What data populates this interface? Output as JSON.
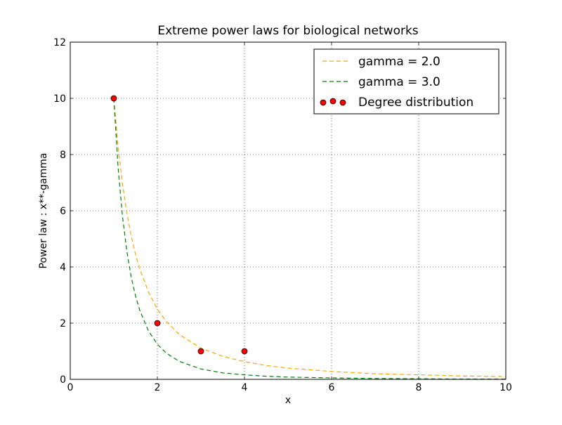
{
  "chart_data": {
    "type": "line",
    "title": "Extreme power laws for biological networks",
    "xlabel": "x",
    "ylabel": "Power law : x**-gamma",
    "xlim": [
      0,
      10
    ],
    "ylim": [
      0,
      12
    ],
    "xticks": [
      "0",
      "2",
      "4",
      "6",
      "8",
      "10"
    ],
    "yticks": [
      "0",
      "2",
      "4",
      "6",
      "8",
      "10",
      "12"
    ],
    "grid": true,
    "legend_position": "top-right",
    "series": [
      {
        "name": "gamma = 2.0",
        "kind": "line",
        "style": "dashed",
        "color": "#ffa500",
        "formula": "10 * x^-2.0",
        "x": [
          1.0,
          1.1,
          1.2,
          1.3,
          1.4,
          1.5,
          1.6,
          1.8,
          2.0,
          2.2,
          2.5,
          3.0,
          3.5,
          4.0,
          4.5,
          5.0,
          6.0,
          7.0,
          8.0,
          9.0,
          10.0
        ],
        "y": [
          10.0,
          8.26,
          6.94,
          5.92,
          5.1,
          4.44,
          3.91,
          3.09,
          2.5,
          2.07,
          1.6,
          1.11,
          0.82,
          0.63,
          0.49,
          0.4,
          0.28,
          0.2,
          0.16,
          0.12,
          0.1
        ]
      },
      {
        "name": "gamma = 3.0",
        "kind": "line",
        "style": "dashed",
        "color": "#008000",
        "formula": "10 * x^-3.0",
        "x": [
          1.0,
          1.1,
          1.2,
          1.3,
          1.4,
          1.5,
          1.6,
          1.8,
          2.0,
          2.2,
          2.5,
          3.0,
          3.5,
          4.0,
          4.5,
          5.0,
          6.0,
          7.0,
          8.0,
          9.0,
          10.0
        ],
        "y": [
          10.0,
          7.51,
          5.79,
          4.55,
          3.64,
          2.96,
          2.44,
          1.71,
          1.25,
          0.94,
          0.64,
          0.37,
          0.23,
          0.16,
          0.11,
          0.08,
          0.05,
          0.03,
          0.02,
          0.01,
          0.01
        ]
      },
      {
        "name": "Degree distribution",
        "kind": "scatter",
        "color": "#ff0000",
        "x": [
          1,
          2,
          3,
          4
        ],
        "y": [
          10,
          2,
          1,
          1
        ]
      }
    ]
  }
}
